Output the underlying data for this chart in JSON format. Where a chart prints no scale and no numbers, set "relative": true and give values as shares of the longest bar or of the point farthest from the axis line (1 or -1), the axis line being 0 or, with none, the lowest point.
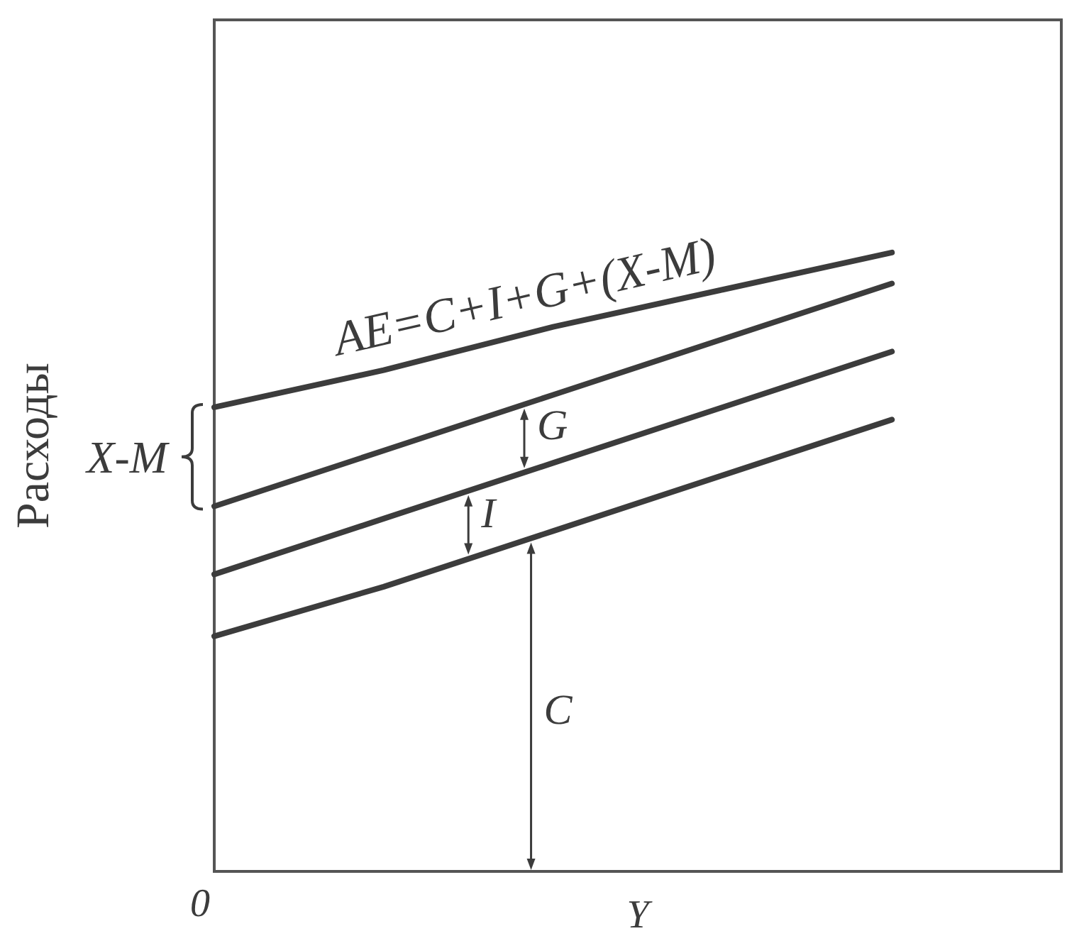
{
  "chart_data": {
    "type": "line",
    "relative": true,
    "xlabel": "Y",
    "ylabel": "Расходы",
    "marker": "none",
    "categories": [
      null,
      null,
      null,
      null,
      null,
      null
    ],
    "series": [
      {
        "name": "AE=C+I+G+(X-M)",
        "color": "#3c3c3c",
        "values": [
          0.75,
          0.81,
          0.88,
          0.94,
          1,
          null
        ]
      },
      {
        "color": "#3c3c3c",
        "values": [
          0.59,
          0.68,
          0.77,
          0.86,
          0.95,
          null
        ]
      },
      {
        "color": "#3c3c3c",
        "values": [
          0.48,
          0.57,
          0.66,
          0.75,
          0.84,
          null
        ]
      },
      {
        "color": "#3c3c3c",
        "values": [
          0.38,
          0.46,
          0.55,
          0.64,
          0.73,
          null
        ]
      }
    ],
    "annotations": [
      "G",
      "I",
      "C",
      "X-M",
      "0"
    ]
  }
}
